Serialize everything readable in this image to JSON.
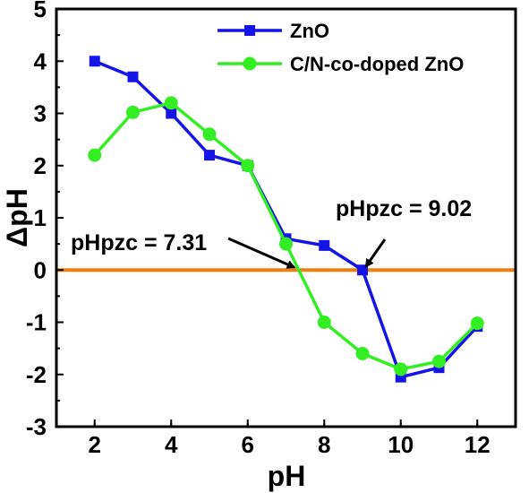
{
  "chart_data": {
    "type": "line",
    "xlabel": "pH",
    "ylabel": "ΔpH",
    "xlim": [
      1,
      13
    ],
    "ylim": [
      -3,
      5
    ],
    "xticks": [
      2,
      4,
      6,
      8,
      10,
      12
    ],
    "yticks": [
      -3,
      -2,
      -1,
      0,
      1,
      2,
      3,
      4,
      5
    ],
    "x": [
      2,
      3,
      4,
      5,
      6,
      7,
      8,
      9,
      10,
      11,
      12
    ],
    "series": [
      {
        "name": "ZnO",
        "color": "#1414e6",
        "marker": "square",
        "values": [
          4.0,
          3.7,
          3.0,
          2.2,
          2.0,
          0.6,
          0.47,
          0.0,
          -2.05,
          -1.87,
          -1.08
        ]
      },
      {
        "name": "C/N-co-doped ZnO",
        "color": "#33ee22",
        "marker": "circle",
        "values": [
          2.2,
          3.02,
          3.2,
          2.6,
          2.0,
          0.5,
          -1.0,
          -1.6,
          -1.9,
          -1.75,
          -1.02
        ]
      }
    ],
    "reference_line": {
      "y": 0,
      "color": "#f07f0f"
    },
    "annotations": [
      {
        "text": "pHpzc = 9.02",
        "x": 9.02,
        "y": 0
      },
      {
        "text": "pHpzc = 7.31",
        "x": 7.31,
        "y": 0
      }
    ],
    "legend_position": "top-right",
    "grid": false
  }
}
